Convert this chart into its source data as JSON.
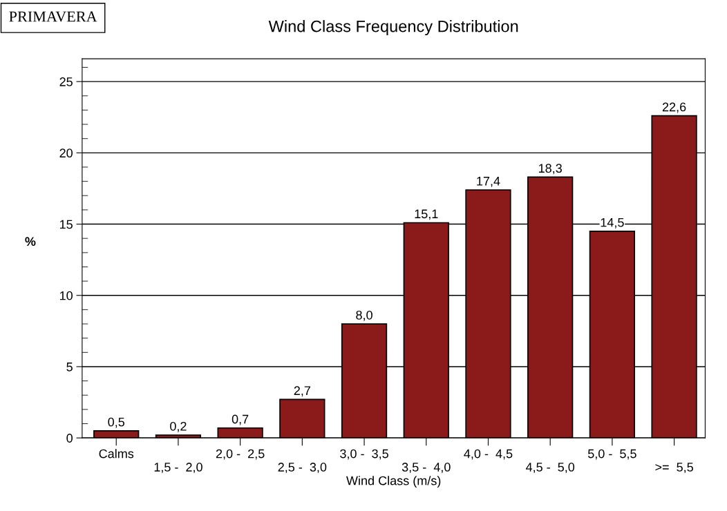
{
  "chart_data": {
    "type": "bar",
    "title": "Wind Class Frequency Distribution",
    "xlabel": "Wind Class (m/s)",
    "ylabel": "%",
    "annotations": [
      "PRIMAVERA"
    ],
    "categories": [
      "Calms",
      "1,5 -  2,0",
      "2,0 -  2,5",
      "2,5 -  3,0",
      "3,0 -  3,5",
      "3,5 -  4,0",
      "4,0 -  4,5",
      "4,5 -  5,0",
      "5,0 -  5,5",
      ">=  5,5"
    ],
    "values": [
      0.5,
      0.2,
      0.7,
      2.7,
      8.0,
      15.1,
      17.4,
      18.3,
      14.5,
      22.6
    ],
    "value_labels": [
      "0,5",
      "0,2",
      "0,7",
      "2,7",
      "8,0",
      "15,1",
      "17,4",
      "18,3",
      "14,5",
      "22,6"
    ],
    "color": "#8b1a1a",
    "ylim": [
      0,
      26.6
    ],
    "yticks": [
      0,
      5,
      10,
      15,
      20,
      25
    ],
    "grid": "y",
    "legend": false
  }
}
